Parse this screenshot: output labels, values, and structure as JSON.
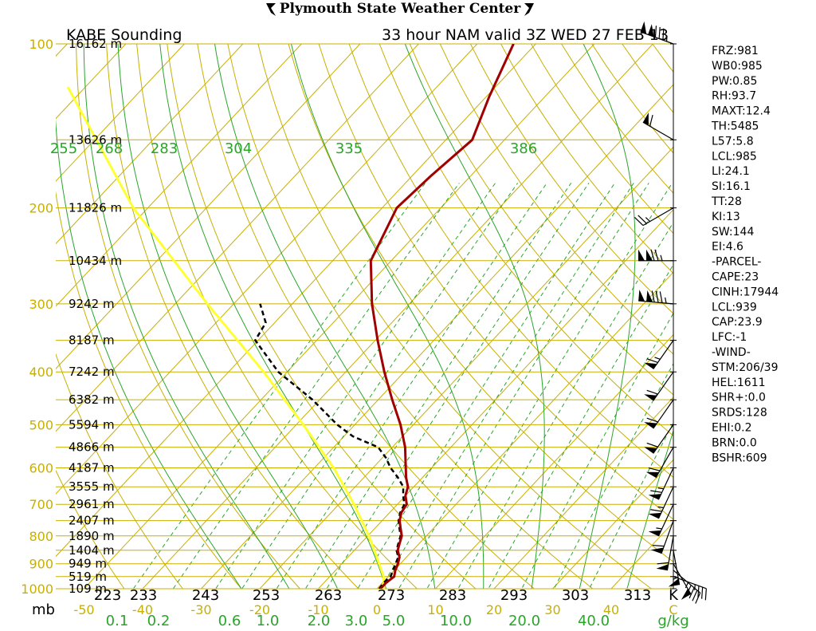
{
  "header": {
    "center_title": "Plymouth State Weather Center",
    "station": "KABE Sounding",
    "valid": "33 hour NAM valid 3Z WED 27 FEB 13"
  },
  "chart_data": {
    "type": "skew-t",
    "pressure_levels": [
      100,
      200,
      300,
      400,
      500,
      600,
      700,
      800,
      900,
      1000
    ],
    "extra_isobars": [
      150,
      250,
      350,
      450,
      550,
      650,
      750,
      850,
      950
    ],
    "pressure_unit": "mb",
    "heights": [
      {
        "p": 100,
        "label": "16162 m"
      },
      {
        "p": 150,
        "label": "13626 m"
      },
      {
        "p": 200,
        "label": "11826 m"
      },
      {
        "p": 250,
        "label": "10434 m"
      },
      {
        "p": 300,
        "label": "9242 m"
      },
      {
        "p": 350,
        "label": "8187 m"
      },
      {
        "p": 400,
        "label": "7242 m"
      },
      {
        "p": 450,
        "label": "6382 m"
      },
      {
        "p": 500,
        "label": "5594 m"
      },
      {
        "p": 550,
        "label": "4866 m"
      },
      {
        "p": 600,
        "label": "4187 m"
      },
      {
        "p": 650,
        "label": "3555 m"
      },
      {
        "p": 700,
        "label": "2961 m"
      },
      {
        "p": 750,
        "label": "2407 m"
      },
      {
        "p": 800,
        "label": "1890 m"
      },
      {
        "p": 850,
        "label": "1404 m"
      },
      {
        "p": 900,
        "label": "949 m"
      },
      {
        "p": 950,
        "label": "519 m"
      },
      {
        "p": 1000,
        "label": "109 m"
      }
    ],
    "temp_axis_ticks": [
      "-50",
      "-40",
      "-30",
      "-20",
      "-10",
      "0",
      "10",
      "20",
      "30",
      "40",
      "C"
    ],
    "temp_axis_values": [
      -50,
      -40,
      -30,
      -20,
      -10,
      0,
      10,
      20,
      30,
      40
    ],
    "temp_unit": "C",
    "kelvin_ticks": [
      "223",
      "233",
      "243",
      "253",
      "263",
      "273",
      "283",
      "293",
      "303",
      "313",
      "K"
    ],
    "theta_e_labels": [
      "255",
      "268",
      "283",
      "304",
      "335",
      "386"
    ],
    "mixing_ratio_labels": [
      "0.1",
      "0.2",
      "0.6",
      "1.0",
      "2.0",
      "3.0",
      "5.0",
      "10.0",
      "20.0",
      "40.0"
    ],
    "mixing_ratio_values": [
      0.1,
      0.2,
      0.6,
      1.0,
      2.0,
      3.0,
      5.0,
      10.0,
      20.0,
      40.0
    ],
    "mixing_ratio_unit": "g/kg",
    "temperature_profile": [
      {
        "p": 1000,
        "t": 0.6
      },
      {
        "p": 975,
        "t": 0.6
      },
      {
        "p": 950,
        "t": 1.0
      },
      {
        "p": 925,
        "t": 0.2
      },
      {
        "p": 900,
        "t": -0.4
      },
      {
        "p": 875,
        "t": -1.2
      },
      {
        "p": 850,
        "t": -2.6
      },
      {
        "p": 825,
        "t": -3.4
      },
      {
        "p": 800,
        "t": -4.2
      },
      {
        "p": 775,
        "t": -5.6
      },
      {
        "p": 750,
        "t": -7.0
      },
      {
        "p": 725,
        "t": -8.0
      },
      {
        "p": 700,
        "t": -8.4
      },
      {
        "p": 675,
        "t": -10.0
      },
      {
        "p": 650,
        "t": -11.0
      },
      {
        "p": 625,
        "t": -12.8
      },
      {
        "p": 600,
        "t": -14.4
      },
      {
        "p": 550,
        "t": -17.8
      },
      {
        "p": 500,
        "t": -22.2
      },
      {
        "p": 450,
        "t": -27.6
      },
      {
        "p": 400,
        "t": -33.4
      },
      {
        "p": 350,
        "t": -39.6
      },
      {
        "p": 300,
        "t": -46.4
      },
      {
        "p": 250,
        "t": -53.5
      },
      {
        "p": 200,
        "t": -57.5
      },
      {
        "p": 175,
        "t": -56.8
      },
      {
        "p": 150,
        "t": -55.5
      },
      {
        "p": 125,
        "t": -59.5
      },
      {
        "p": 100,
        "t": -63.8
      }
    ],
    "dewpoint_profile": [
      {
        "p": 1000,
        "t": 0.4
      },
      {
        "p": 975,
        "t": 0.2
      },
      {
        "p": 950,
        "t": 0.4
      },
      {
        "p": 925,
        "t": -0.2
      },
      {
        "p": 900,
        "t": -0.8
      },
      {
        "p": 875,
        "t": -1.4
      },
      {
        "p": 850,
        "t": -2.8
      },
      {
        "p": 825,
        "t": -3.6
      },
      {
        "p": 800,
        "t": -4.4
      },
      {
        "p": 775,
        "t": -5.8
      },
      {
        "p": 750,
        "t": -7.2
      },
      {
        "p": 725,
        "t": -8.2
      },
      {
        "p": 700,
        "t": -8.8
      },
      {
        "p": 675,
        "t": -10.4
      },
      {
        "p": 650,
        "t": -11.8
      },
      {
        "p": 625,
        "t": -14.2
      },
      {
        "p": 600,
        "t": -17.0
      },
      {
        "p": 575,
        "t": -19.4
      },
      {
        "p": 550,
        "t": -22.4
      },
      {
        "p": 525,
        "t": -28.5
      },
      {
        "p": 500,
        "t": -33.0
      },
      {
        "p": 450,
        "t": -41.2
      },
      {
        "p": 400,
        "t": -51.5
      },
      {
        "p": 350,
        "t": -60.5
      },
      {
        "p": 325,
        "t": -61.5
      },
      {
        "p": 300,
        "t": -65.5
      }
    ],
    "parcel_profile": [
      {
        "p": 1000,
        "t": 1.2
      },
      {
        "p": 950,
        "t": -0.8
      },
      {
        "p": 900,
        "t": -3.6
      },
      {
        "p": 850,
        "t": -6.6
      },
      {
        "p": 800,
        "t": -9.8
      },
      {
        "p": 700,
        "t": -17.4
      },
      {
        "p": 600,
        "t": -26.7
      },
      {
        "p": 500,
        "t": -38.8
      },
      {
        "p": 400,
        "t": -54.0
      },
      {
        "p": 300,
        "t": -74.5
      },
      {
        "p": 200,
        "t": -102.5
      },
      {
        "p": 120,
        "t": -133.0
      }
    ],
    "wind_barbs": [
      {
        "p": 100,
        "dir": 290,
        "spd": 135
      },
      {
        "p": 150,
        "dir": 300,
        "spd": 60
      },
      {
        "p": 200,
        "dir": 240,
        "spd": 25
      },
      {
        "p": 250,
        "dir": 270,
        "spd": 125
      },
      {
        "p": 300,
        "dir": 275,
        "spd": 135
      },
      {
        "p": 350,
        "dir": 215,
        "spd": 65
      },
      {
        "p": 400,
        "dir": 215,
        "spd": 60
      },
      {
        "p": 450,
        "dir": 215,
        "spd": 60
      },
      {
        "p": 500,
        "dir": 215,
        "spd": 60
      },
      {
        "p": 550,
        "dir": 210,
        "spd": 60
      },
      {
        "p": 600,
        "dir": 205,
        "spd": 65
      },
      {
        "p": 650,
        "dir": 205,
        "spd": 65
      },
      {
        "p": 700,
        "dir": 205,
        "spd": 55
      },
      {
        "p": 750,
        "dir": 200,
        "spd": 60
      },
      {
        "p": 800,
        "dir": 190,
        "spd": 60
      },
      {
        "p": 850,
        "dir": 170,
        "spd": 55
      },
      {
        "p": 900,
        "dir": 150,
        "spd": 50
      },
      {
        "p": 925,
        "dir": 130,
        "spd": 45
      },
      {
        "p": 950,
        "dir": 110,
        "spd": 35
      }
    ],
    "hodo_anchor_labels": [],
    "indices": [
      "FRZ:981",
      "WB0:985",
      "PW:0.85",
      "RH:93.7",
      "MAXT:12.4",
      "TH:5485",
      "L57:5.8",
      "LCL:985",
      "LI:24.1",
      "SI:16.1",
      "TT:28",
      "KI:13",
      "SW:144",
      "EI:4.6",
      "-PARCEL-",
      "CAPE:23",
      "CINH:17944",
      "LCL:939",
      "CAP:23.9",
      "LFC:-1",
      "-WIND-",
      "STM:206/39",
      "HEL:1611",
      "SHR+:0.0",
      "SRDS:128",
      "EHI:0.2",
      "BRN:0.0",
      "BSHR:609"
    ]
  },
  "colors": {
    "isobar": "#c8b000",
    "isotherm": "#c8b000",
    "dry_adiabat": "#c8b000",
    "moist_adiabat": "#2aa52a",
    "mixing_ratio": "#2aa52a",
    "temperature": "#a00000",
    "dewpoint": "#000000",
    "parcel": "#ffff33",
    "text": "#000000"
  },
  "icons": [
    "flag-left-icon",
    "flag-right-icon"
  ]
}
